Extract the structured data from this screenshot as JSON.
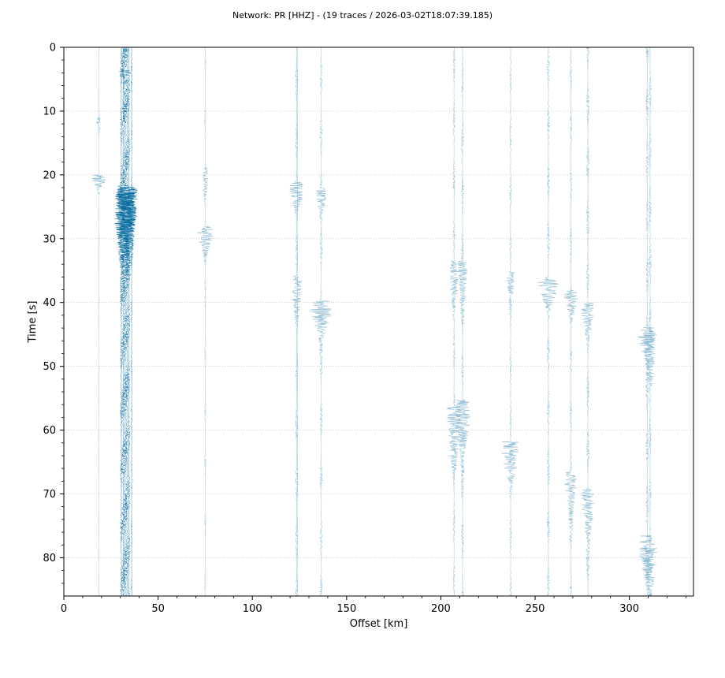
{
  "chart_data": {
    "type": "scatter",
    "title": "Network: PR [HHZ] - (19 traces / 2026-03-02T18:07:39.185)",
    "xlabel": "Offset [km]",
    "ylabel": "Time [s]",
    "xlim": [
      0,
      334
    ],
    "ylim": [
      86,
      0
    ],
    "y_inverted": true,
    "grid": "horizontal dotted",
    "x_ticks": [
      0,
      50,
      100,
      150,
      200,
      250,
      300
    ],
    "x_tick_labels": [
      "0",
      "50",
      "100",
      "150",
      "200",
      "250",
      "300"
    ],
    "y_ticks": [
      0,
      10,
      20,
      30,
      40,
      50,
      60,
      70,
      80
    ],
    "y_tick_labels": [
      "0",
      "10",
      "20",
      "30",
      "40",
      "50",
      "60",
      "70",
      "80"
    ],
    "colors": {
      "trace_light": "#6ea9c8",
      "trace_dark": "#00689c",
      "grid": "#b0b0b0"
    },
    "traces": [
      {
        "offset": 18.5,
        "start": 0,
        "end": 86,
        "base_amp": 0.4,
        "color": "light",
        "bursts": [
          {
            "t": 11.5,
            "amp": 2.5,
            "w": 1.5
          },
          {
            "t": 20.5,
            "amp": 7,
            "w": 1.5
          }
        ]
      },
      {
        "offset": 30.5,
        "start": 0,
        "end": 86,
        "base_amp": 1.2,
        "color": "dark",
        "bursts": [
          {
            "t": 25,
            "amp": 5,
            "w": 8
          }
        ]
      },
      {
        "offset": 31.5,
        "start": 0,
        "end": 86,
        "base_amp": 1.5,
        "color": "dark",
        "bursts": [
          {
            "t": 24,
            "amp": 7,
            "w": 8
          }
        ]
      },
      {
        "offset": 32.5,
        "start": 0,
        "end": 86,
        "base_amp": 2.2,
        "color": "dark",
        "bursts": [
          {
            "t": 4,
            "amp": 5,
            "w": 2
          },
          {
            "t": 25,
            "amp": 9,
            "w": 8
          }
        ]
      },
      {
        "offset": 33.5,
        "start": 0,
        "end": 86,
        "base_amp": 1.6,
        "color": "dark",
        "bursts": [
          {
            "t": 24,
            "amp": 8,
            "w": 7
          }
        ]
      },
      {
        "offset": 34.5,
        "start": 0,
        "end": 86,
        "base_amp": 1.3,
        "color": "dark",
        "bursts": [
          {
            "t": 25,
            "amp": 7,
            "w": 7
          }
        ]
      },
      {
        "offset": 36.0,
        "start": 0,
        "end": 86,
        "base_amp": 0.8,
        "color": "dark",
        "bursts": [
          {
            "t": 24,
            "amp": 5,
            "w": 6
          }
        ]
      },
      {
        "offset": 75.0,
        "start": 0,
        "end": 86,
        "base_amp": 0.8,
        "color": "light",
        "bursts": [
          {
            "t": 20,
            "amp": 2,
            "w": 4
          },
          {
            "t": 29,
            "amp": 7,
            "w": 3
          }
        ]
      },
      {
        "offset": 123.5,
        "start": 0,
        "end": 86,
        "base_amp": 1.4,
        "color": "light",
        "bursts": [
          {
            "t": 22,
            "amp": 6,
            "w": 3
          },
          {
            "t": 37,
            "amp": 5,
            "w": 4
          }
        ]
      },
      {
        "offset": 136.5,
        "start": 0,
        "end": 86,
        "base_amp": 1.3,
        "color": "light",
        "bursts": [
          {
            "t": 23,
            "amp": 4,
            "w": 3
          },
          {
            "t": 41,
            "amp": 9,
            "w": 4
          }
        ]
      },
      {
        "offset": 207.0,
        "start": 0,
        "end": 86,
        "base_amp": 1.2,
        "color": "light",
        "bursts": [
          {
            "t": 35,
            "amp": 4,
            "w": 5
          },
          {
            "t": 58,
            "amp": 7,
            "w": 6
          }
        ]
      },
      {
        "offset": 211.5,
        "start": 0,
        "end": 86,
        "base_amp": 1.4,
        "color": "light",
        "bursts": [
          {
            "t": 35,
            "amp": 4,
            "w": 5
          },
          {
            "t": 57,
            "amp": 7,
            "w": 6
          }
        ]
      },
      {
        "offset": 237.0,
        "start": 0,
        "end": 86,
        "base_amp": 1.0,
        "color": "light",
        "bursts": [
          {
            "t": 36,
            "amp": 4,
            "w": 3
          },
          {
            "t": 63,
            "amp": 9,
            "w": 4
          }
        ]
      },
      {
        "offset": 257.0,
        "start": 0,
        "end": 86,
        "base_amp": 1.4,
        "color": "light",
        "bursts": [
          {
            "t": 37,
            "amp": 9,
            "w": 3
          }
        ]
      },
      {
        "offset": 269.0,
        "start": 0,
        "end": 86,
        "base_amp": 1.2,
        "color": "light",
        "bursts": [
          {
            "t": 39,
            "amp": 6,
            "w": 3
          },
          {
            "t": 68,
            "amp": 5,
            "w": 5
          }
        ]
      },
      {
        "offset": 278.0,
        "start": 0,
        "end": 86,
        "base_amp": 1.6,
        "color": "light",
        "bursts": [
          {
            "t": 41,
            "amp": 6,
            "w": 3
          },
          {
            "t": 71,
            "amp": 5,
            "w": 6
          }
        ]
      },
      {
        "offset": 309.5,
        "start": 0,
        "end": 86,
        "base_amp": 1.5,
        "color": "light",
        "bursts": [
          {
            "t": 45,
            "amp": 8,
            "w": 4
          },
          {
            "t": 78,
            "amp": 7,
            "w": 5
          }
        ]
      },
      {
        "offset": 311.0,
        "start": 0,
        "end": 86,
        "base_amp": 1.3,
        "color": "light",
        "bursts": [
          {
            "t": 46,
            "amp": 6,
            "w": 5
          },
          {
            "t": 80,
            "amp": 6,
            "w": 5
          }
        ]
      },
      {
        "offset": 124.0,
        "start": 0,
        "end": 86,
        "base_amp": 0.3,
        "color": "light",
        "bursts": []
      }
    ]
  }
}
